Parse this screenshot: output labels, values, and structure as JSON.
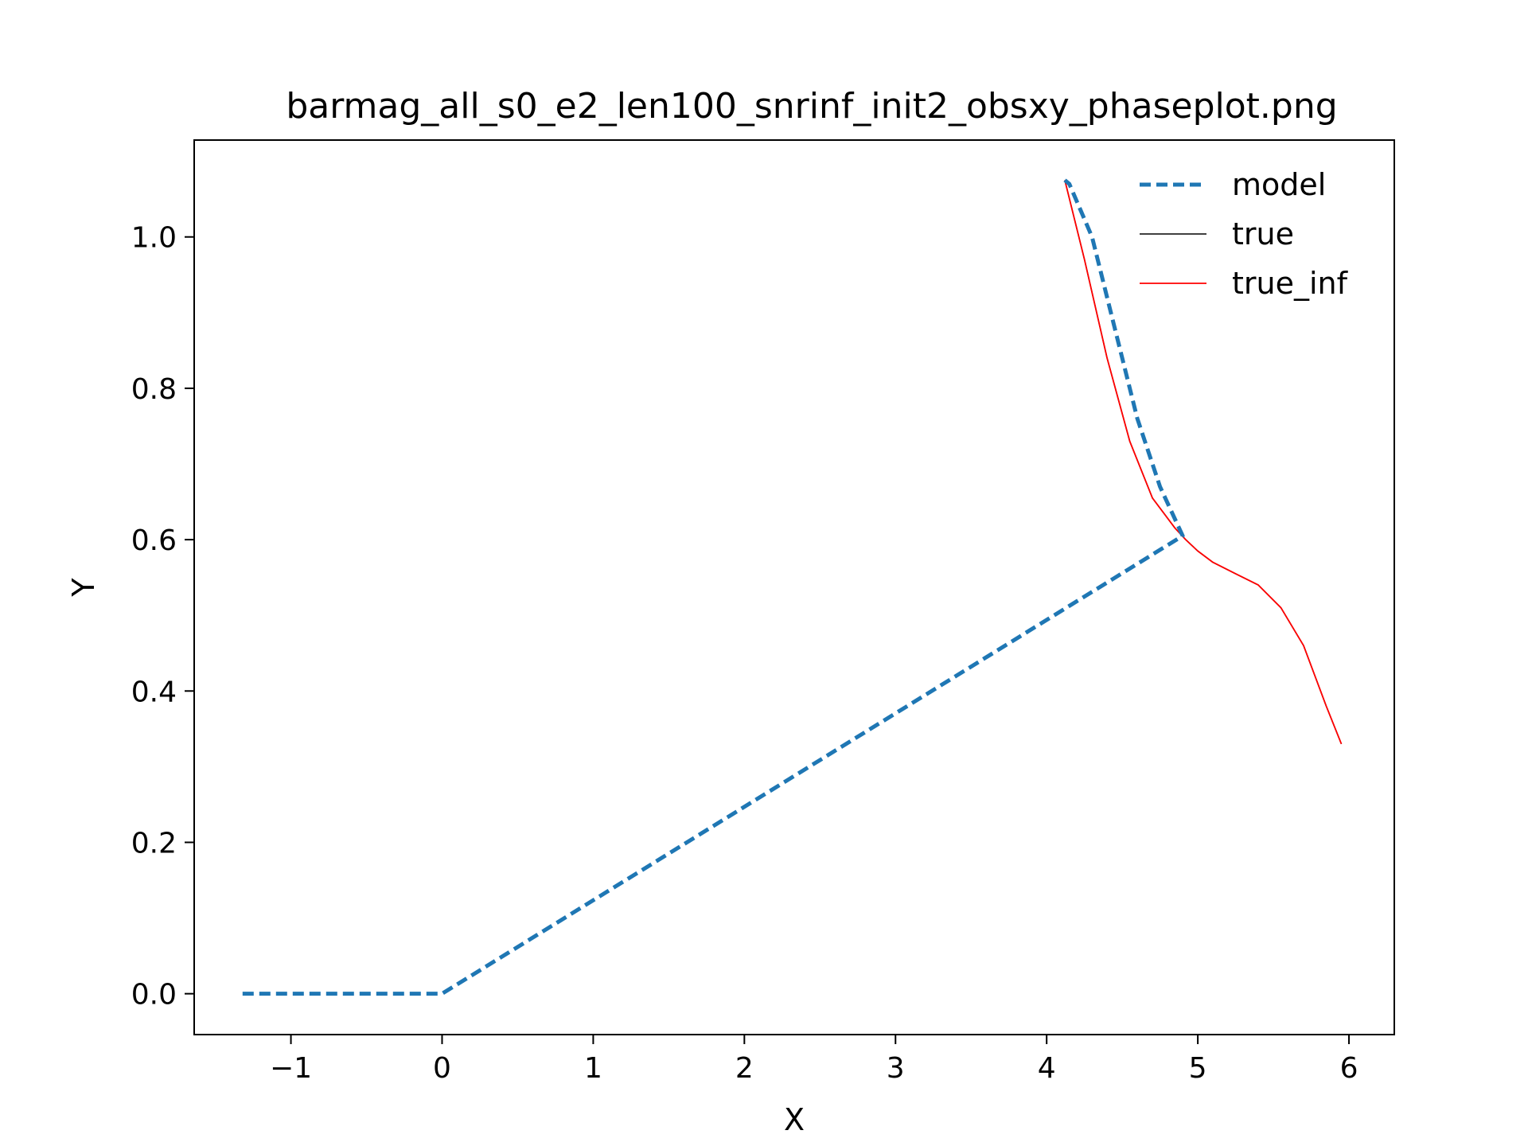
{
  "chart_data": {
    "type": "line",
    "title": "barmag_all_s0_e2_len100_snrinf_init2_obsxy_phaseplot.png",
    "xlabel": "X",
    "ylabel": "Y",
    "xlim": [
      -1.64,
      6.3
    ],
    "ylim": [
      -0.054,
      1.128
    ],
    "xticks": [
      -1,
      0,
      1,
      2,
      3,
      4,
      5,
      6
    ],
    "xtick_labels": [
      "−1",
      "0",
      "1",
      "2",
      "3",
      "4",
      "5",
      "6"
    ],
    "yticks": [
      0.0,
      0.2,
      0.4,
      0.6,
      0.8,
      1.0
    ],
    "ytick_labels": [
      "0.0",
      "0.2",
      "0.4",
      "0.6",
      "0.8",
      "1.0"
    ],
    "grid": false,
    "legend_position": "upper-right",
    "series": [
      {
        "name": "model",
        "color": "#1f77b4",
        "style": "dashed",
        "x": [
          -1.32,
          0.0,
          4.9,
          4.75,
          4.6,
          4.45,
          4.3,
          4.15,
          4.12
        ],
        "y": [
          0.0,
          0.0,
          0.605,
          0.67,
          0.76,
          0.88,
          1.0,
          1.07,
          1.075
        ]
      },
      {
        "name": "true",
        "color": "#000000",
        "style": "solid",
        "x": [
          4.12,
          4.25,
          4.4,
          4.55,
          4.7,
          4.85,
          4.92,
          5.0,
          5.1,
          5.25,
          5.4,
          5.55,
          5.7,
          5.85,
          5.95
        ],
        "y": [
          1.075,
          0.97,
          0.84,
          0.73,
          0.655,
          0.615,
          0.6,
          0.585,
          0.57,
          0.555,
          0.54,
          0.51,
          0.46,
          0.38,
          0.33
        ]
      },
      {
        "name": "true_inf",
        "color": "#ff0000",
        "style": "solid",
        "x": [
          4.12,
          4.25,
          4.4,
          4.55,
          4.7,
          4.85,
          4.92,
          5.0,
          5.1,
          5.25,
          5.4,
          5.55,
          5.7,
          5.85,
          5.95
        ],
        "y": [
          1.075,
          0.97,
          0.84,
          0.73,
          0.655,
          0.615,
          0.6,
          0.585,
          0.57,
          0.555,
          0.54,
          0.51,
          0.46,
          0.38,
          0.33
        ]
      }
    ]
  }
}
